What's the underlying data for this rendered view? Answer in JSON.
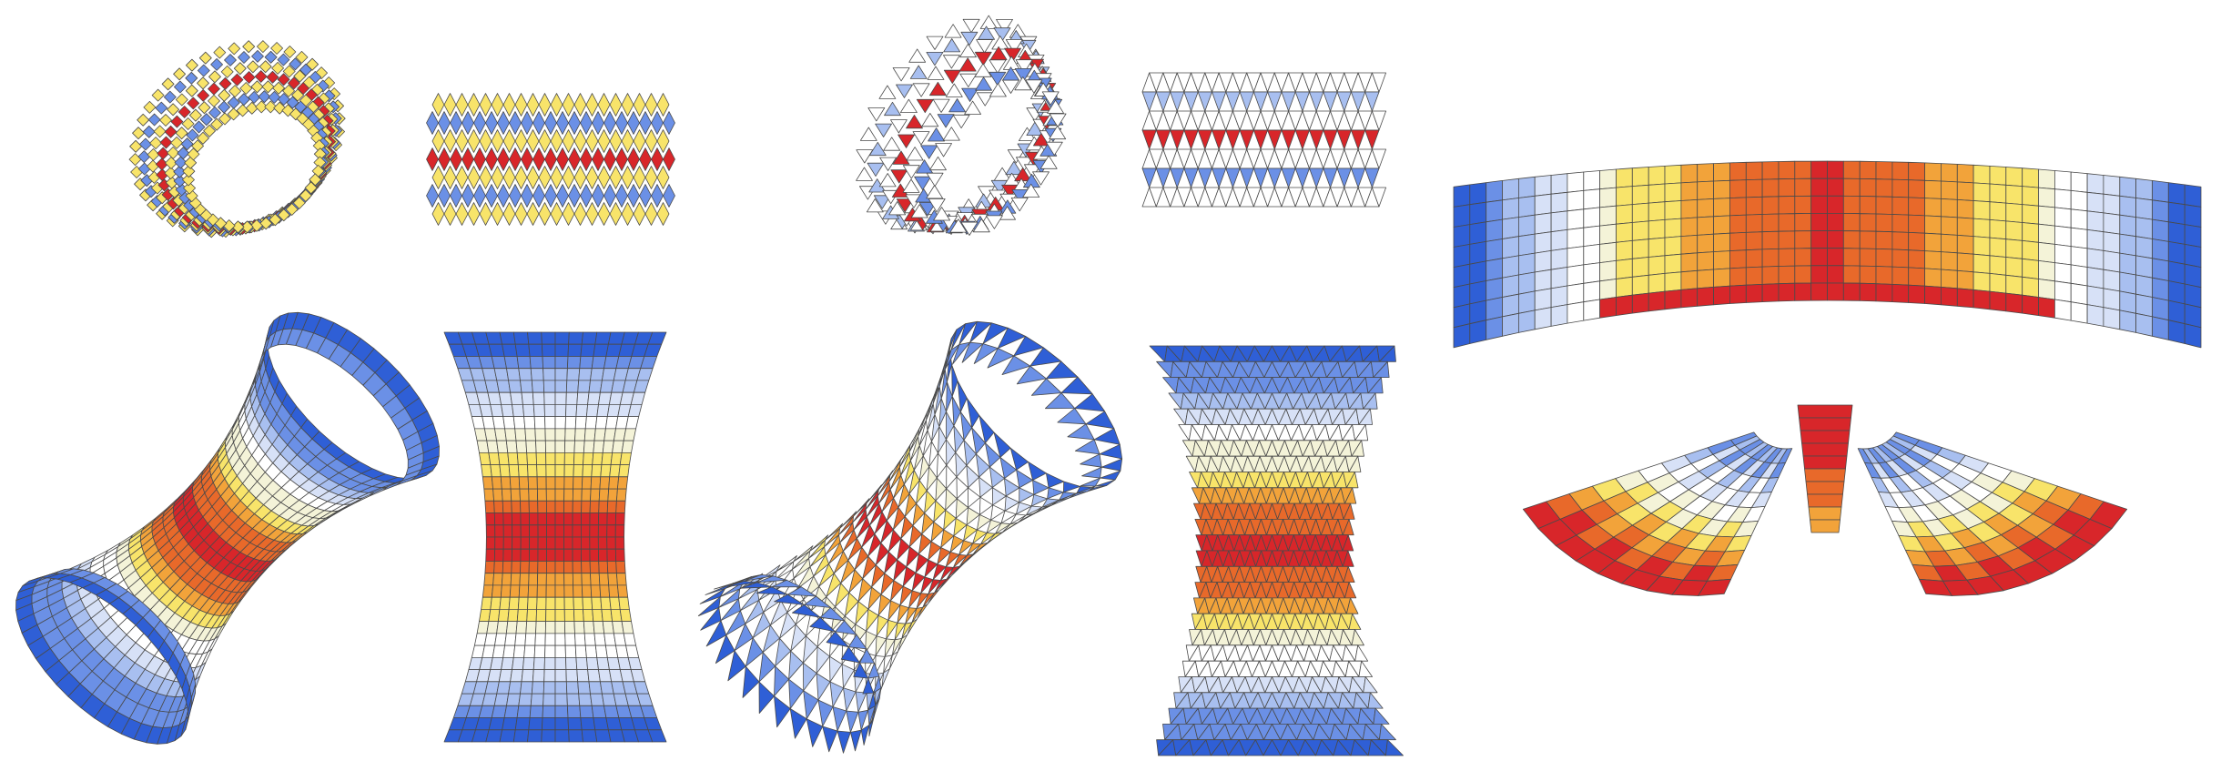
{
  "palette": {
    "red": "#d8262a",
    "orange": "#e8692a",
    "amber": "#f2a33a",
    "yellow": "#f8e46a",
    "pale": "#f4f3d8",
    "white": "#ffffff",
    "ice": "#d7e1f7",
    "light_blue": "#a8bff0",
    "blue": "#6b90e6",
    "deep_blue": "#2f5fd6"
  },
  "stripes_square": [
    "yellow",
    "blue",
    "yellow",
    "red",
    "yellow",
    "blue",
    "yellow"
  ],
  "stripes_triangle": [
    "white",
    "light_blue",
    "white",
    "red",
    "white",
    "blue",
    "white"
  ],
  "ramp_radial": [
    "deep_blue",
    "blue",
    "light_blue",
    "ice",
    "white",
    "pale",
    "yellow",
    "amber",
    "orange",
    "red",
    "red",
    "orange",
    "amber",
    "yellow",
    "pale",
    "white",
    "ice",
    "light_blue",
    "blue",
    "deep_blue"
  ],
  "ramp_bridge": [
    "deep_blue",
    "blue",
    "light_blue",
    "ice",
    "white",
    "pale",
    "yellow",
    "yellow",
    "amber",
    "amber",
    "orange",
    "orange",
    "orange",
    "red",
    "orange",
    "orange",
    "orange",
    "amber",
    "amber",
    "yellow",
    "yellow",
    "pale",
    "white",
    "ice",
    "light_blue",
    "blue",
    "deep_blue"
  ]
}
